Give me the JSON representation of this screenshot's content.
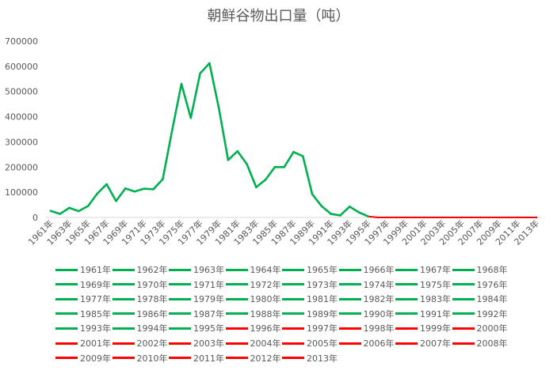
{
  "chart_data": {
    "type": "line",
    "title": "朝鲜谷物出口量（吨）",
    "xlabel": "",
    "ylabel": "",
    "ylim": [
      0,
      700000
    ],
    "y_ticks": [
      "0",
      "100000",
      "200000",
      "300000",
      "400000",
      "500000",
      "600000",
      "700000"
    ],
    "x": [
      "1961年",
      "1962年",
      "1963年",
      "1964年",
      "1965年",
      "1966年",
      "1967年",
      "1968年",
      "1969年",
      "1970年",
      "1971年",
      "1972年",
      "1973年",
      "1974年",
      "1975年",
      "1976年",
      "1977年",
      "1978年",
      "1979年",
      "1980年",
      "1981年",
      "1982年",
      "1983年",
      "1984年",
      "1985年",
      "1986年",
      "1987年",
      "1988年",
      "1989年",
      "1990年",
      "1991年",
      "1992年",
      "1993年",
      "1994年",
      "1995年",
      "1996年",
      "1997年",
      "1998年",
      "1999年",
      "2000年",
      "2001年",
      "2002年",
      "2003年",
      "2004年",
      "2005年",
      "2006年",
      "2007年",
      "2008年",
      "2009年",
      "2010年",
      "2011年",
      "2012年",
      "2013年"
    ],
    "x_tick_labels": [
      "1961年",
      "1963年",
      "1965年",
      "1967年",
      "1969年",
      "1971年",
      "1973年",
      "1975年",
      "1977年",
      "1979年",
      "1981年",
      "1983年",
      "1985年",
      "1987年",
      "1989年",
      "1991年",
      "1993年",
      "1995年",
      "1997年",
      "1999年",
      "2001年",
      "2003年",
      "2005年",
      "2007年",
      "2009年",
      "2011年",
      "2013年"
    ],
    "values": [
      26000,
      14000,
      38000,
      25000,
      45000,
      95000,
      132000,
      65000,
      115000,
      103000,
      114000,
      112000,
      152000,
      345000,
      530000,
      395000,
      572000,
      612000,
      435000,
      228000,
      263000,
      212000,
      120000,
      150000,
      200000,
      200000,
      260000,
      243000,
      92000,
      45000,
      14000,
      8000,
      43000,
      20000,
      4000,
      0,
      0,
      0,
      0,
      0,
      0,
      0,
      0,
      0,
      0,
      0,
      0,
      0,
      0,
      0,
      0,
      0,
      0
    ],
    "segment_colors": {
      "up_to_1995": "#00b050",
      "from_1996": "#ff0000"
    },
    "grid": false,
    "legend_position": "bottom"
  },
  "legend": {
    "items": [
      "1961年",
      "1962年",
      "1963年",
      "1964年",
      "1965年",
      "1966年",
      "1967年",
      "1968年",
      "1969年",
      "1970年",
      "1971年",
      "1972年",
      "1973年",
      "1974年",
      "1975年",
      "1976年",
      "1977年",
      "1978年",
      "1979年",
      "1980年",
      "1981年",
      "1982年",
      "1983年",
      "1984年",
      "1985年",
      "1986年",
      "1987年",
      "1988年",
      "1989年",
      "1990年",
      "1991年",
      "1992年",
      "1993年",
      "1994年",
      "1995年",
      "1996年",
      "1997年",
      "1998年",
      "1999年",
      "2000年",
      "2001年",
      "2002年",
      "2003年",
      "2004年",
      "2005年",
      "2006年",
      "2007年",
      "2008年",
      "2009年",
      "2010年",
      "2011年",
      "2012年",
      "2013年"
    ]
  }
}
